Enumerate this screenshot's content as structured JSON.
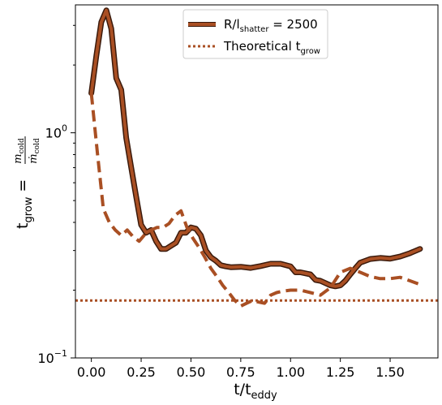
{
  "chart_data": {
    "type": "line",
    "xlabel": "t/t",
    "xlabel_sub": "eddy",
    "ylabel_main": "t",
    "ylabel_sub": "grow",
    "ylabel_eq": " = ",
    "ylabel_num": "m",
    "ylabel_num_sub": "cold",
    "ylabel_den": "ṁ",
    "ylabel_den_sub": "cold",
    "y_scale": "log",
    "xlim": [
      -0.08,
      1.74
    ],
    "ylim": [
      0.1,
      3.7
    ],
    "x_ticks": [
      {
        "value": 0.0,
        "label": "0.00"
      },
      {
        "value": 0.25,
        "label": "0.25"
      },
      {
        "value": 0.5,
        "label": "0.50"
      },
      {
        "value": 0.75,
        "label": "0.75"
      },
      {
        "value": 1.0,
        "label": "1.00"
      },
      {
        "value": 1.25,
        "label": "1.25"
      },
      {
        "value": 1.5,
        "label": "1.50"
      }
    ],
    "y_ticks": [
      {
        "value": 0.1,
        "base": "10",
        "exp": "−1"
      },
      {
        "value": 1.0,
        "base": "10",
        "exp": "0"
      }
    ],
    "grid": false,
    "legend": {
      "placement": "top-center",
      "entries": [
        {
          "label_main": "R/l",
          "label_sub": "shatter",
          "label_rest": " = 2500",
          "style": "solid"
        },
        {
          "label_main": "Theoretical t",
          "label_sub": "grow",
          "label_rest": "",
          "style": "dotted"
        }
      ]
    },
    "colors": {
      "line": "#a94f23",
      "edge": "#3a1a0c"
    },
    "theoretical_t_grow": 0.18,
    "series": [
      {
        "style": "solid",
        "x": [
          0.0,
          0.025,
          0.05,
          0.075,
          0.1,
          0.125,
          0.15,
          0.175,
          0.2,
          0.225,
          0.25,
          0.275,
          0.3,
          0.325,
          0.35,
          0.375,
          0.4,
          0.425,
          0.45,
          0.475,
          0.5,
          0.525,
          0.55,
          0.575,
          0.6,
          0.625,
          0.65,
          0.675,
          0.7,
          0.75,
          0.8,
          0.85,
          0.9,
          0.95,
          1.0,
          1.025,
          1.05,
          1.1,
          1.125,
          1.15,
          1.2,
          1.225,
          1.25,
          1.275,
          1.3,
          1.325,
          1.35,
          1.4,
          1.45,
          1.5,
          1.55,
          1.6,
          1.65
        ],
        "y": [
          1.5,
          2.2,
          3.1,
          3.5,
          2.9,
          1.75,
          1.55,
          0.95,
          0.7,
          0.52,
          0.39,
          0.36,
          0.37,
          0.33,
          0.305,
          0.305,
          0.315,
          0.325,
          0.36,
          0.36,
          0.38,
          0.375,
          0.35,
          0.3,
          0.28,
          0.27,
          0.258,
          0.255,
          0.253,
          0.254,
          0.251,
          0.256,
          0.262,
          0.262,
          0.255,
          0.24,
          0.24,
          0.235,
          0.222,
          0.22,
          0.21,
          0.208,
          0.21,
          0.22,
          0.235,
          0.25,
          0.265,
          0.275,
          0.278,
          0.276,
          0.282,
          0.292,
          0.305
        ]
      },
      {
        "style": "dashed",
        "x": [
          0.0,
          0.03,
          0.06,
          0.09,
          0.12,
          0.15,
          0.18,
          0.21,
          0.24,
          0.27,
          0.3,
          0.33,
          0.36,
          0.39,
          0.42,
          0.45,
          0.48,
          0.51,
          0.54,
          0.57,
          0.6,
          0.63,
          0.66,
          0.69,
          0.72,
          0.75,
          0.78,
          0.81,
          0.84,
          0.87,
          0.9,
          0.93,
          0.96,
          1.0,
          1.05,
          1.1,
          1.15,
          1.2,
          1.25,
          1.3,
          1.35,
          1.4,
          1.45,
          1.5,
          1.55,
          1.6,
          1.65
        ],
        "y": [
          1.5,
          0.82,
          0.46,
          0.4,
          0.37,
          0.35,
          0.37,
          0.345,
          0.33,
          0.355,
          0.37,
          0.38,
          0.38,
          0.395,
          0.43,
          0.45,
          0.38,
          0.34,
          0.31,
          0.28,
          0.25,
          0.23,
          0.21,
          0.195,
          0.18,
          0.17,
          0.175,
          0.18,
          0.177,
          0.175,
          0.19,
          0.195,
          0.198,
          0.2,
          0.2,
          0.195,
          0.19,
          0.205,
          0.24,
          0.25,
          0.24,
          0.23,
          0.225,
          0.225,
          0.228,
          0.22,
          0.212
        ]
      }
    ]
  }
}
